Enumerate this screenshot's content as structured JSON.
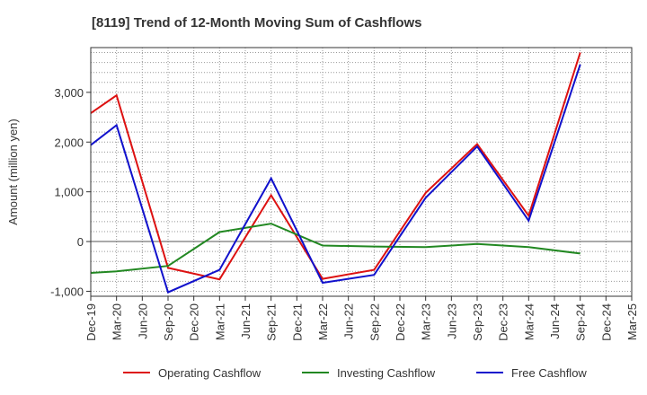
{
  "chart_data": {
    "type": "line",
    "title": "[8119]  Trend of 12-Month Moving Sum of Cashflows",
    "xlabel": "",
    "ylabel": "Amount (million yen)",
    "categories": [
      "Dec-19",
      "Mar-20",
      "Jun-20",
      "Sep-20",
      "Dec-20",
      "Mar-21",
      "Jun-21",
      "Sep-21",
      "Dec-21",
      "Mar-22",
      "Jun-22",
      "Sep-22",
      "Dec-22",
      "Mar-23",
      "Jun-23",
      "Sep-23",
      "Dec-23",
      "Mar-24",
      "Jun-24",
      "Sep-24",
      "Dec-24",
      "Mar-25"
    ],
    "ylim": [
      -1100,
      3900
    ],
    "yticks": [
      -1000,
      0,
      1000,
      2000,
      3000
    ],
    "ytick_labels": [
      "-1,000",
      "0",
      "1,000",
      "2,000",
      "3,000"
    ],
    "grid": true,
    "legend_position": "bottom",
    "series": [
      {
        "name": "Operating Cashflow",
        "color": "#dd1111",
        "values": [
          2580,
          2940,
          null,
          -530,
          null,
          -760,
          null,
          930,
          null,
          -750,
          null,
          -570,
          null,
          980,
          null,
          1960,
          null,
          520,
          null,
          3800,
          null,
          null
        ]
      },
      {
        "name": "Investing Cashflow",
        "color": "#228822",
        "values": [
          -630,
          -600,
          null,
          -490,
          null,
          190,
          null,
          360,
          null,
          -80,
          null,
          -100,
          null,
          -110,
          null,
          -50,
          null,
          -110,
          null,
          -240,
          null,
          null
        ]
      },
      {
        "name": "Free Cashflow",
        "color": "#1111cc",
        "values": [
          1940,
          2340,
          null,
          -1020,
          null,
          -570,
          null,
          1270,
          null,
          -830,
          null,
          -670,
          null,
          880,
          null,
          1910,
          null,
          420,
          null,
          3560,
          null,
          null
        ]
      }
    ]
  }
}
